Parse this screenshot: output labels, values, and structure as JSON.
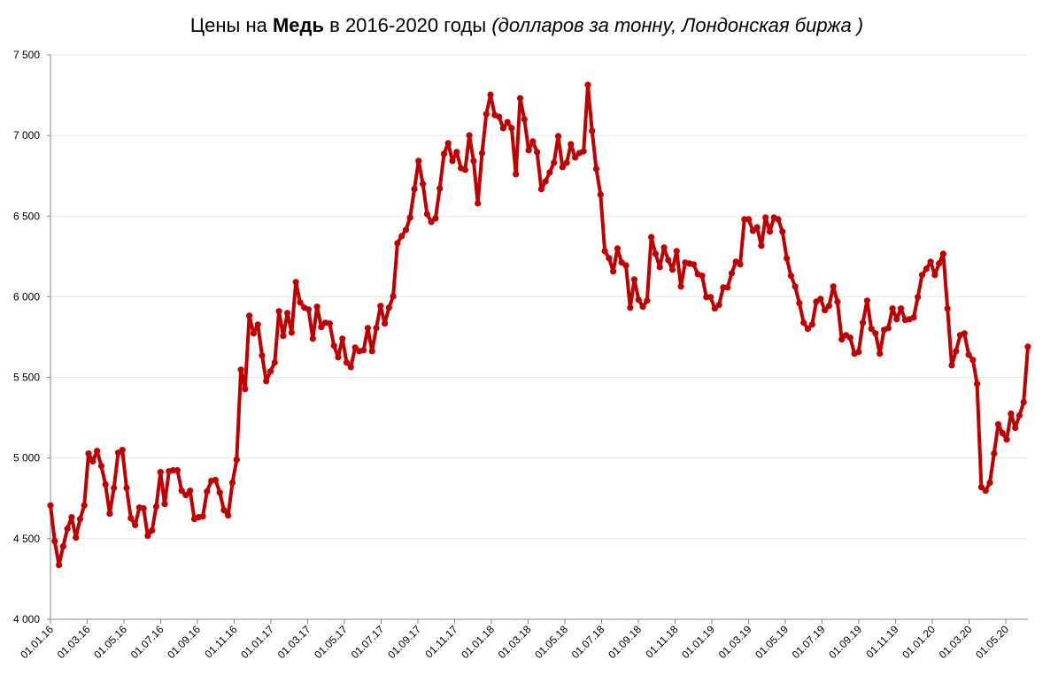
{
  "chart_data": {
    "type": "line",
    "title": {
      "prefix": "Цены на ",
      "bold": "Медь",
      "middle": " в 2016-2020 годы ",
      "italic": "(долларов за тонну, Лондонская биржа )"
    },
    "xlabel": "",
    "ylabel": "",
    "ylim": [
      4000,
      7500
    ],
    "y_ticks": [
      {
        "value": 4000,
        "label": "4 000"
      },
      {
        "value": 4500,
        "label": "4 500"
      },
      {
        "value": 5000,
        "label": "5 000"
      },
      {
        "value": 5500,
        "label": "5 500"
      },
      {
        "value": 6000,
        "label": "6 000"
      },
      {
        "value": 6500,
        "label": "6 500"
      },
      {
        "value": 7000,
        "label": "7 000"
      },
      {
        "value": 7500,
        "label": "7 500"
      }
    ],
    "x_tick_labels": [
      "01.01.16",
      "01.03.16",
      "01.05.16",
      "01.07.16",
      "01.09.16",
      "01.11.16",
      "01.01.17",
      "01.03.17",
      "01.05.17",
      "01.07.17",
      "01.09.17",
      "01.11.17",
      "01.01.18",
      "01.03.18",
      "01.05.18",
      "01.07.18",
      "01.09.18",
      "01.11.18",
      "01.01.19",
      "01.03.19",
      "01.05.19",
      "01.07.19",
      "01.09.19",
      "01.11.19",
      "01.01.20",
      "01.03.20",
      "01.05.20"
    ],
    "x_frequency": "weekly",
    "grid": true,
    "legend": "none",
    "color": "#c00000",
    "series": [
      {
        "name": "Медь",
        "values": [
          4706,
          4485,
          4337,
          4452,
          4562,
          4633,
          4507,
          4622,
          4706,
          5028,
          4979,
          5044,
          4951,
          4836,
          4655,
          4814,
          5033,
          5050,
          4814,
          4627,
          4584,
          4693,
          4688,
          4518,
          4551,
          4699,
          4913,
          4715,
          4918,
          4924,
          4924,
          4797,
          4770,
          4797,
          4622,
          4633,
          4638,
          4792,
          4858,
          4864,
          4786,
          4677,
          4644,
          4847,
          4989,
          5548,
          5428,
          5883,
          5773,
          5828,
          5636,
          5477,
          5537,
          5592,
          5910,
          5757,
          5899,
          5778,
          6091,
          5965,
          5932,
          5921,
          5740,
          5938,
          5812,
          5839,
          5834,
          5696,
          5625,
          5740,
          5592,
          5564,
          5685,
          5663,
          5669,
          5806,
          5663,
          5806,
          5943,
          5834,
          5932,
          6003,
          6332,
          6376,
          6415,
          6491,
          6667,
          6842,
          6700,
          6513,
          6464,
          6486,
          6672,
          6886,
          6952,
          6842,
          6897,
          6798,
          6787,
          7001,
          6842,
          6579,
          6891,
          7133,
          7253,
          7127,
          7116,
          7045,
          7083,
          7045,
          6760,
          7231,
          7100,
          6908,
          6963,
          6897,
          6667,
          6716,
          6771,
          6831,
          6996,
          6804,
          6831,
          6946,
          6864,
          6891,
          6902,
          7314,
          7029,
          6793,
          6634,
          6283,
          6239,
          6157,
          6299,
          6212,
          6195,
          5932,
          6107,
          5981,
          5938,
          5976,
          6370,
          6266,
          6184,
          6305,
          6228,
          6168,
          6283,
          6064,
          6212,
          6206,
          6201,
          6140,
          6130,
          5998,
          5998,
          5927,
          5949,
          6058,
          6058,
          6146,
          6217,
          6201,
          6480,
          6480,
          6409,
          6431,
          6316,
          6491,
          6404,
          6491,
          6480,
          6404,
          6239,
          6130,
          6064,
          5960,
          5839,
          5801,
          5828,
          5970,
          5987,
          5916,
          5943,
          6064,
          5970,
          5735,
          5762,
          5746,
          5647,
          5658,
          5839,
          5976,
          5801,
          5773,
          5647,
          5795,
          5806,
          5927,
          5861,
          5927,
          5856,
          5861,
          5872,
          5998,
          6135,
          6173,
          6217,
          6135,
          6206,
          6266,
          5927,
          5575,
          5663,
          5762,
          5773,
          5641,
          5608,
          5460,
          4819,
          4797,
          4847,
          5028,
          5209,
          5154,
          5115,
          5275,
          5187,
          5264,
          5346,
          5690
        ]
      }
    ]
  }
}
